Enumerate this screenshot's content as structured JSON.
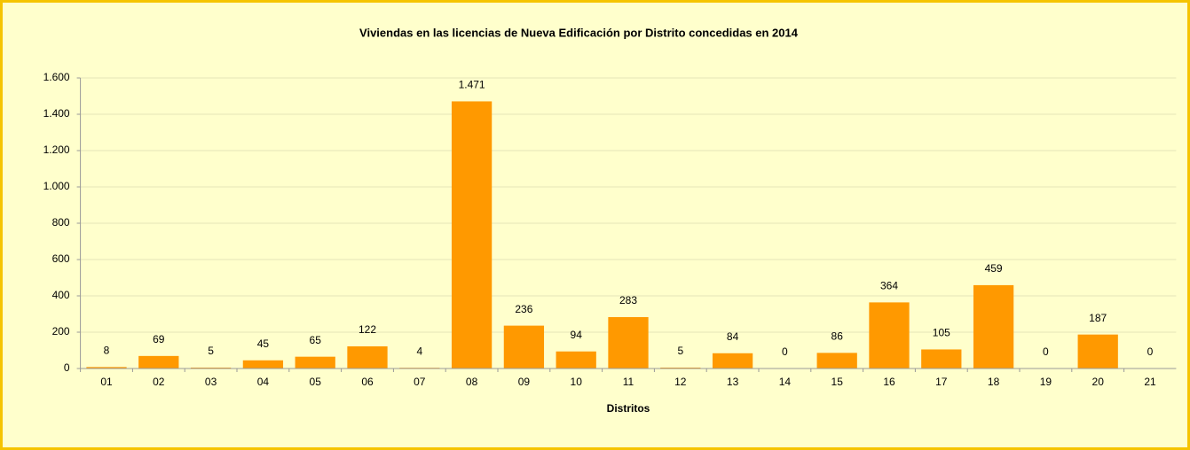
{
  "chart_data": {
    "type": "bar",
    "title": "Viviendas en las licencias de Nueva Edificación por Distrito concedidas en 2014",
    "x_label": "Distritos",
    "categories": [
      "01",
      "02",
      "03",
      "04",
      "05",
      "06",
      "07",
      "08",
      "09",
      "10",
      "11",
      "12",
      "13",
      "14",
      "15",
      "16",
      "17",
      "18",
      "19",
      "20",
      "21"
    ],
    "values": [
      8,
      69,
      5,
      45,
      65,
      122,
      4,
      1471,
      236,
      94,
      283,
      5,
      84,
      0,
      86,
      364,
      105,
      459,
      0,
      187,
      0
    ],
    "value_labels": [
      "8",
      "69",
      "5",
      "45",
      "65",
      "122",
      "4",
      "1.471",
      "236",
      "94",
      "283",
      "5",
      "84",
      "0",
      "86",
      "364",
      "105",
      "459",
      "0",
      "187",
      "0"
    ],
    "color": "#ff9900",
    "ylim": [
      0,
      1600
    ],
    "yticks": [
      0,
      200,
      400,
      600,
      800,
      {
        "value": 1000,
        "label": "1.000"
      },
      {
        "value": 1200,
        "label": "1.200"
      },
      {
        "value": 1400,
        "label": "1.400"
      },
      {
        "value": 1600,
        "label": "1.600"
      }
    ],
    "grid": true
  }
}
